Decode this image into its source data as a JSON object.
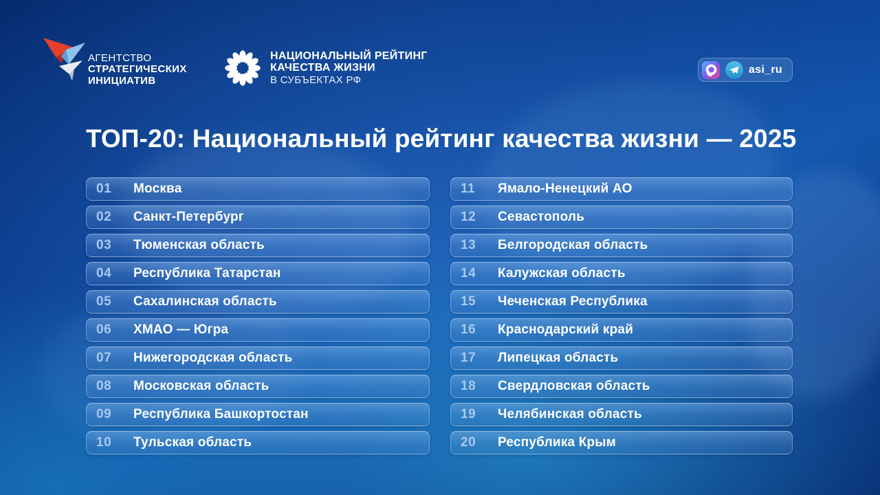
{
  "header": {
    "asi": {
      "line1": "АГЕНТСТВО",
      "line2": "СТРАТЕГИЧЕСКИХ",
      "line3": "ИНИЦИАТИВ"
    },
    "rating_logo": {
      "line1": "НАЦИОНАЛЬНЫЙ РЕЙТИНГ",
      "line2": "КАЧЕСТВА ЖИЗНИ",
      "line3": "В СУБЪЕКТАХ РФ"
    },
    "social": {
      "handle": "asi_ru",
      "icons": [
        "max-messenger-icon",
        "telegram-icon"
      ]
    }
  },
  "title": "ТОП-20: Национальный рейтинг качества жизни — 2025",
  "ranking": {
    "columns": [
      {
        "items": [
          {
            "rank": "01",
            "name": "Москва"
          },
          {
            "rank": "02",
            "name": "Санкт-Петербург"
          },
          {
            "rank": "03",
            "name": "Тюменская область"
          },
          {
            "rank": "04",
            "name": "Республика Татарстан"
          },
          {
            "rank": "05",
            "name": "Сахалинская область"
          },
          {
            "rank": "06",
            "name": "ХМАО — Югра"
          },
          {
            "rank": "07",
            "name": "Нижегородская область"
          },
          {
            "rank": "08",
            "name": "Московская область"
          },
          {
            "rank": "09",
            "name": "Республика Башкортостан"
          },
          {
            "rank": "10",
            "name": "Тульская область"
          }
        ]
      },
      {
        "items": [
          {
            "rank": "11",
            "name": "Ямало-Ненецкий АО"
          },
          {
            "rank": "12",
            "name": "Севастополь"
          },
          {
            "rank": "13",
            "name": "Белгородская область"
          },
          {
            "rank": "14",
            "name": "Калужская область"
          },
          {
            "rank": "15",
            "name": "Чеченская Республика"
          },
          {
            "rank": "16",
            "name": "Краснодарский край"
          },
          {
            "rank": "17",
            "name": "Липецкая область"
          },
          {
            "rank": "18",
            "name": "Свердловская область"
          },
          {
            "rank": "19",
            "name": "Челябинская область"
          },
          {
            "rank": "20",
            "name": "Республика Крым"
          }
        ]
      }
    ]
  },
  "colors": {
    "background_top": "#052a6d",
    "background_glow": "#2496cd",
    "rank_number": "#a9c9ee",
    "row_text": "#ffffff",
    "asi_red": "#e4402a",
    "asi_blue": "#8ec3ea",
    "asi_grey": "#dfe3e8",
    "telegram_blue": "#35a9dd",
    "max_gradient": [
      "#5bb5f5",
      "#7d5bf0",
      "#ef3f8f"
    ]
  }
}
